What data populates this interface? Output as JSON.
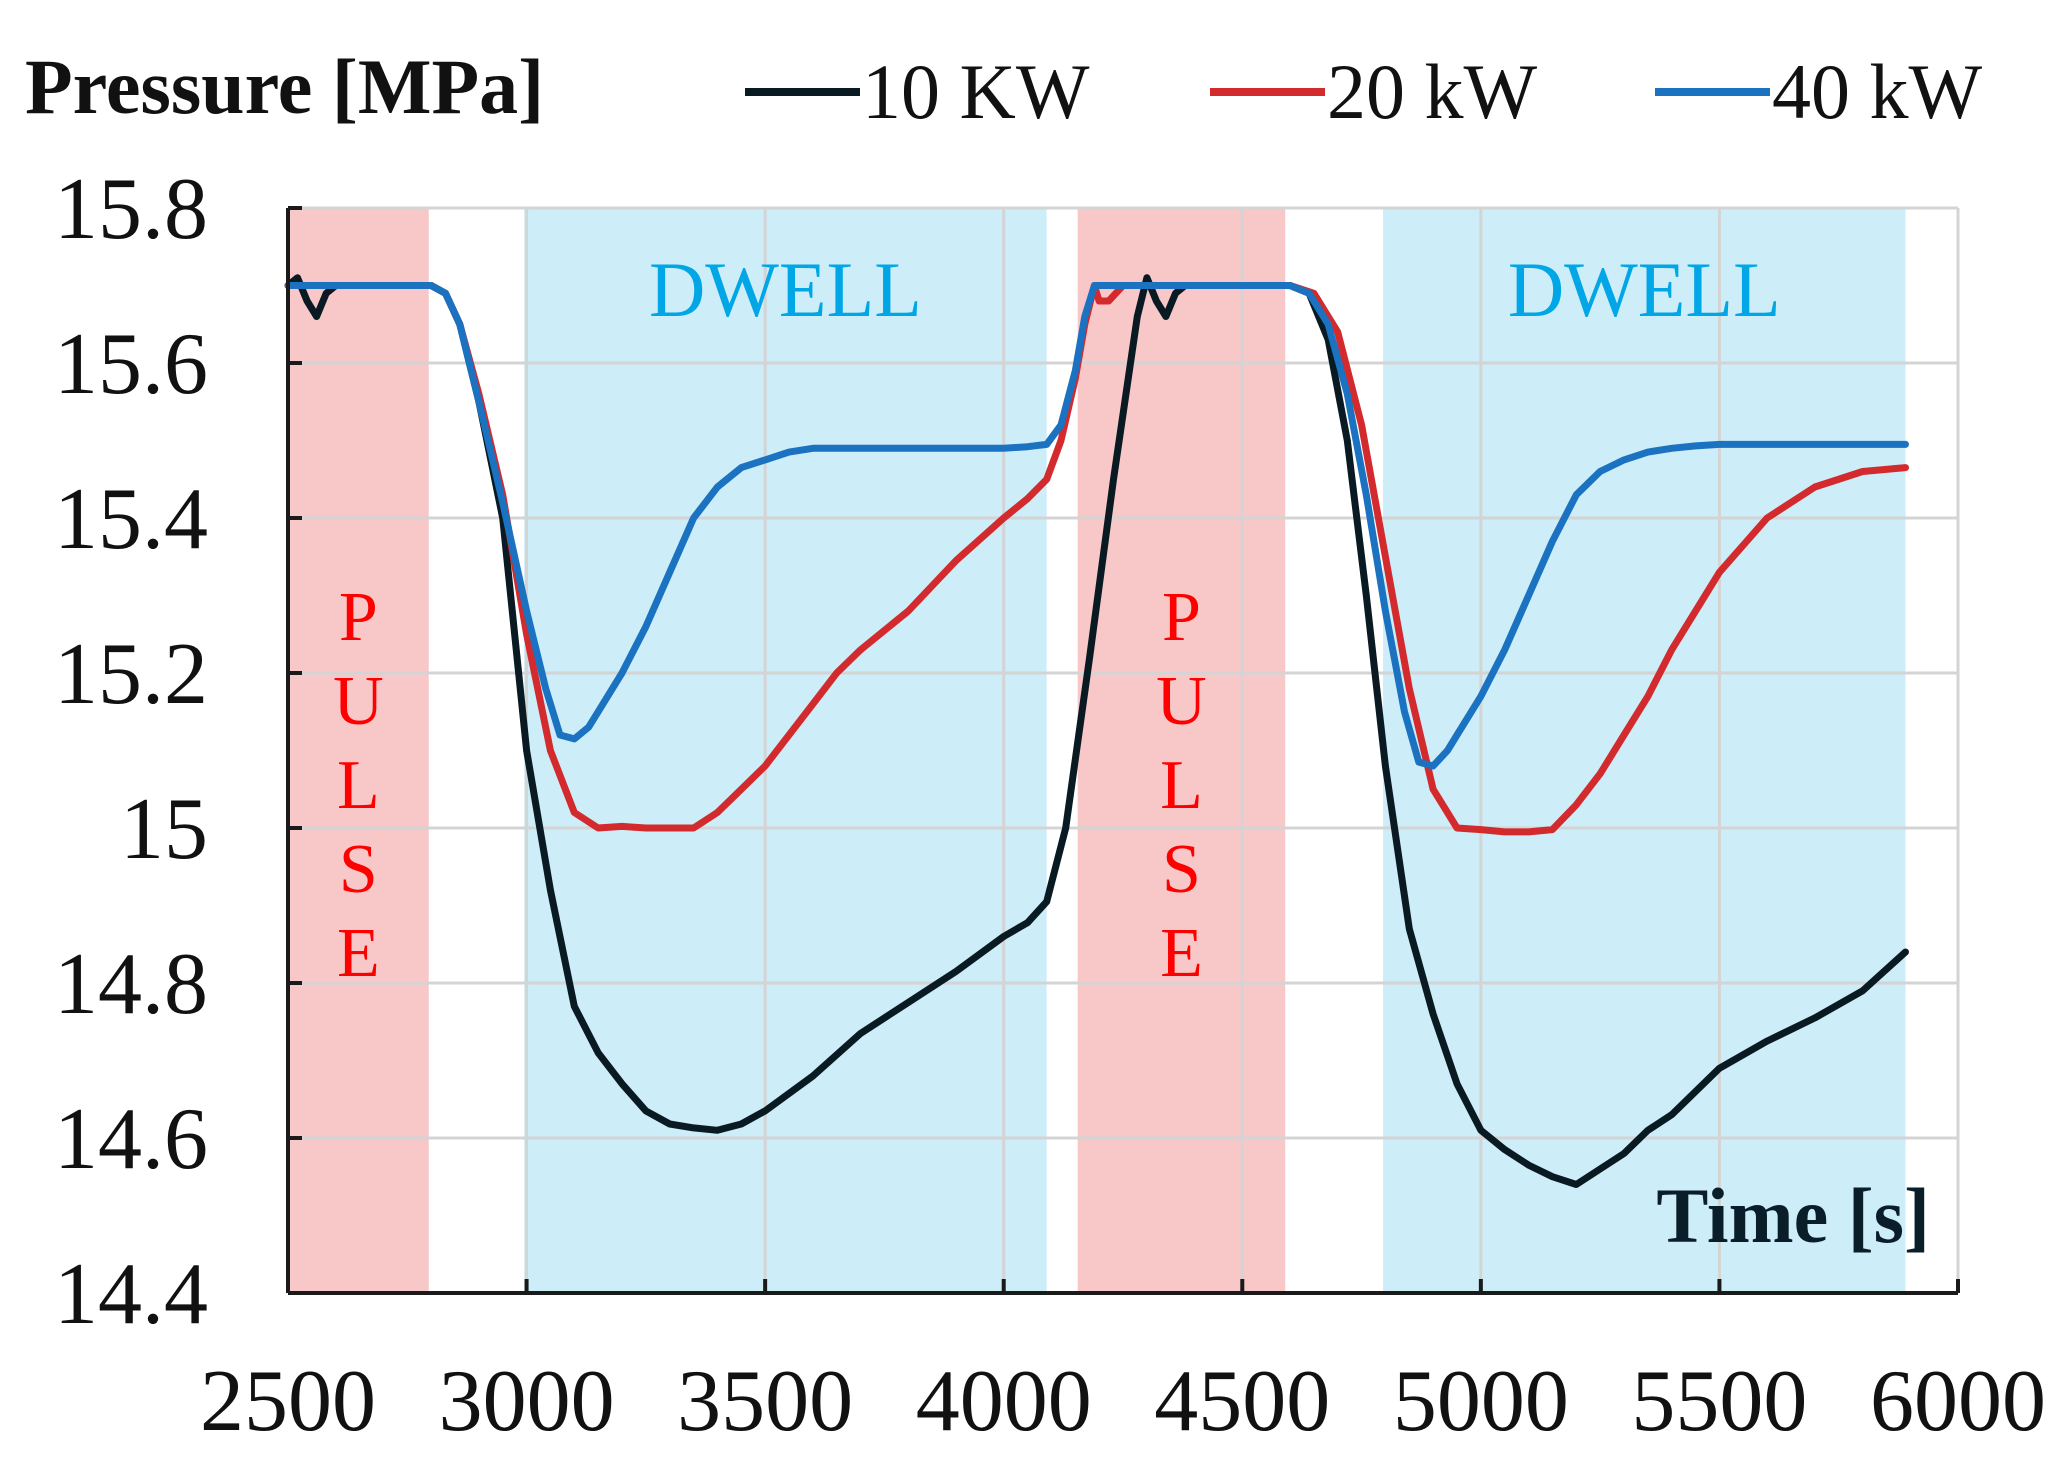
{
  "chart_data": {
    "type": "line",
    "ylabel": "Pressure [MPa]",
    "xlabel": "Time [s]",
    "xlim": [
      2500,
      6000
    ],
    "ylim": [
      14.4,
      15.8
    ],
    "x_ticks": [
      "2500",
      "3000",
      "3500",
      "4000",
      "4500",
      "5000",
      "5500",
      "6000"
    ],
    "y_ticks": [
      "15.8",
      "15.6",
      "15.4",
      "15.2",
      "15",
      "14.8",
      "14.6",
      "14.4"
    ],
    "x_tick_values": [
      2500,
      3000,
      3500,
      4000,
      4500,
      5000,
      5500,
      6000
    ],
    "y_tick_values": [
      15.8,
      15.6,
      15.4,
      15.2,
      15.0,
      14.8,
      14.6,
      14.4
    ],
    "grid": true,
    "legend_position": "top",
    "regions": [
      {
        "type": "pulse",
        "start": 2500,
        "end": 2795,
        "color": "#f8c8c8",
        "label_letters": [
          "P",
          "U",
          "L",
          "S",
          "E"
        ],
        "label_color": "#ff0000"
      },
      {
        "type": "dwell",
        "start": 2995,
        "end": 4090,
        "color": "#cdedf8",
        "label": "DWELL",
        "label_color": "#00a6e6"
      },
      {
        "type": "pulse",
        "start": 4155,
        "end": 4590,
        "color": "#f8c8c8",
        "label_letters": [
          "P",
          "U",
          "L",
          "S",
          "E"
        ],
        "label_color": "#ff0000"
      },
      {
        "type": "dwell",
        "start": 4795,
        "end": 5890,
        "color": "#cdedf8",
        "label": "DWELL",
        "label_color": "#00a6e6"
      }
    ],
    "series": [
      {
        "name": "10 KW",
        "color": "#0a1a22",
        "x": [
          2500,
          2520,
          2540,
          2560,
          2580,
          2600,
          2800,
          2830,
          2860,
          2900,
          2950,
          3000,
          3050,
          3100,
          3150,
          3200,
          3250,
          3300,
          3350,
          3400,
          3450,
          3500,
          3600,
          3700,
          3800,
          3900,
          4000,
          4050,
          4090,
          4130,
          4180,
          4230,
          4280,
          4300,
          4320,
          4340,
          4360,
          4380,
          4400,
          4600,
          4640,
          4680,
          4720,
          4760,
          4800,
          4850,
          4900,
          4950,
          5000,
          5050,
          5100,
          5150,
          5200,
          5250,
          5300,
          5350,
          5400,
          5500,
          5600,
          5700,
          5800,
          5890
        ],
        "y": [
          15.7,
          15.71,
          15.68,
          15.66,
          15.69,
          15.7,
          15.7,
          15.69,
          15.65,
          15.55,
          15.4,
          15.1,
          14.92,
          14.77,
          14.71,
          14.67,
          14.635,
          14.618,
          14.613,
          14.61,
          14.618,
          14.635,
          14.68,
          14.735,
          14.775,
          14.815,
          14.86,
          14.878,
          14.905,
          15.0,
          15.22,
          15.45,
          15.66,
          15.71,
          15.68,
          15.66,
          15.69,
          15.7,
          15.7,
          15.7,
          15.69,
          15.63,
          15.5,
          15.3,
          15.08,
          14.87,
          14.76,
          14.67,
          14.61,
          14.585,
          14.565,
          14.55,
          14.54,
          14.56,
          14.58,
          14.61,
          14.63,
          14.69,
          14.725,
          14.755,
          14.79,
          14.84
        ]
      },
      {
        "name": "20 kW",
        "color": "#d32a2e",
        "x": [
          2500,
          2800,
          2830,
          2860,
          2900,
          2950,
          3000,
          3050,
          3100,
          3150,
          3200,
          3250,
          3300,
          3350,
          3400,
          3450,
          3500,
          3550,
          3600,
          3650,
          3700,
          3800,
          3900,
          4000,
          4050,
          4090,
          4120,
          4150,
          4170,
          4190,
          4200,
          4220,
          4250,
          4280,
          4300,
          4600,
          4650,
          4700,
          4750,
          4800,
          4850,
          4900,
          4950,
          5000,
          5050,
          5100,
          5150,
          5200,
          5250,
          5300,
          5350,
          5400,
          5450,
          5500,
          5600,
          5700,
          5800,
          5890
        ],
        "y": [
          15.7,
          15.7,
          15.69,
          15.65,
          15.56,
          15.43,
          15.25,
          15.1,
          15.02,
          15.0,
          15.002,
          15.0,
          15.0,
          15.0,
          15.02,
          15.05,
          15.08,
          15.12,
          15.16,
          15.2,
          15.23,
          15.28,
          15.345,
          15.4,
          15.425,
          15.45,
          15.5,
          15.58,
          15.65,
          15.7,
          15.68,
          15.68,
          15.7,
          15.7,
          15.7,
          15.7,
          15.69,
          15.64,
          15.52,
          15.35,
          15.18,
          15.05,
          15.0,
          14.998,
          14.995,
          14.995,
          14.998,
          15.03,
          15.07,
          15.12,
          15.17,
          15.23,
          15.28,
          15.33,
          15.4,
          15.44,
          15.46,
          15.465
        ]
      },
      {
        "name": "40 kW",
        "color": "#1a72c0",
        "x": [
          2500,
          2800,
          2830,
          2860,
          2900,
          2950,
          3000,
          3040,
          3070,
          3100,
          3130,
          3150,
          3200,
          3250,
          3300,
          3350,
          3400,
          3450,
          3500,
          3550,
          3600,
          3700,
          3800,
          3900,
          4000,
          4050,
          4090,
          4120,
          4150,
          4170,
          4190,
          4600,
          4640,
          4680,
          4720,
          4760,
          4800,
          4840,
          4870,
          4900,
          4930,
          4950,
          5000,
          5050,
          5100,
          5150,
          5200,
          5250,
          5300,
          5350,
          5400,
          5450,
          5500,
          5600,
          5700,
          5800,
          5890
        ],
        "y": [
          15.7,
          15.7,
          15.69,
          15.65,
          15.55,
          15.42,
          15.28,
          15.18,
          15.12,
          15.115,
          15.13,
          15.15,
          15.2,
          15.26,
          15.33,
          15.4,
          15.44,
          15.465,
          15.475,
          15.485,
          15.49,
          15.49,
          15.49,
          15.49,
          15.49,
          15.492,
          15.495,
          15.52,
          15.59,
          15.66,
          15.7,
          15.7,
          15.69,
          15.65,
          15.56,
          15.43,
          15.28,
          15.15,
          15.085,
          15.08,
          15.1,
          15.12,
          15.17,
          15.23,
          15.3,
          15.37,
          15.43,
          15.46,
          15.475,
          15.485,
          15.49,
          15.493,
          15.495,
          15.495,
          15.495,
          15.495,
          15.495
        ]
      }
    ]
  }
}
